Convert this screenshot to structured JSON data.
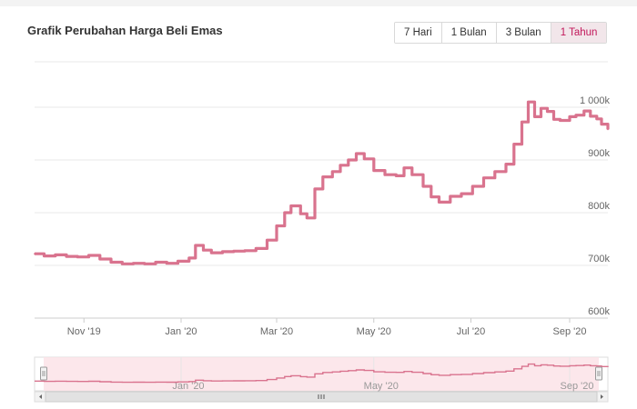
{
  "chart_title": "Grafik Perubahan Harga Beli Emas",
  "range_buttons": [
    {
      "label": "7 Hari",
      "active": false
    },
    {
      "label": "1 Bulan",
      "active": false
    },
    {
      "label": "3 Bulan",
      "active": false
    },
    {
      "label": "1 Tahun",
      "active": true
    }
  ],
  "colors": {
    "line": "#d9738e",
    "navigator_mask": "#fbe3e8",
    "active_button_text": "#c2185b",
    "grid": "#e8e8e8",
    "axis_text": "#666666"
  },
  "chart_data": {
    "type": "line",
    "title": "Grafik Perubahan Harga Beli Emas",
    "xlabel": "",
    "ylabel": "",
    "x_range": [
      "2019-10-01",
      "2020-09-25"
    ],
    "y_range": [
      600,
      1000
    ],
    "x_ticks": [
      {
        "date": "2019-11-01",
        "label": "Nov '19"
      },
      {
        "date": "2020-01-01",
        "label": "Jan '20"
      },
      {
        "date": "2020-03-01",
        "label": "Mar '20"
      },
      {
        "date": "2020-05-01",
        "label": "May '20"
      },
      {
        "date": "2020-07-01",
        "label": "Jul '20"
      },
      {
        "date": "2020-09-01",
        "label": "Sep '20"
      }
    ],
    "y_ticks": [
      {
        "value": 600,
        "label": "600k"
      },
      {
        "value": 700,
        "label": "700k"
      },
      {
        "value": 800,
        "label": "800k"
      },
      {
        "value": 900,
        "label": "900k"
      },
      {
        "value": 1000,
        "label": "1 000k"
      }
    ],
    "series": [
      {
        "points": [
          [
            "2019-10-01",
            722
          ],
          [
            "2019-10-07",
            718
          ],
          [
            "2019-10-14",
            720
          ],
          [
            "2019-10-21",
            717
          ],
          [
            "2019-10-28",
            716
          ],
          [
            "2019-11-04",
            719
          ],
          [
            "2019-11-11",
            712
          ],
          [
            "2019-11-18",
            706
          ],
          [
            "2019-11-25",
            703
          ],
          [
            "2019-12-02",
            704
          ],
          [
            "2019-12-09",
            703
          ],
          [
            "2019-12-16",
            706
          ],
          [
            "2019-12-23",
            704
          ],
          [
            "2019-12-30",
            708
          ],
          [
            "2020-01-06",
            714
          ],
          [
            "2020-01-10",
            738
          ],
          [
            "2020-01-15",
            729
          ],
          [
            "2020-01-20",
            724
          ],
          [
            "2020-01-27",
            726
          ],
          [
            "2020-02-03",
            727
          ],
          [
            "2020-02-10",
            728
          ],
          [
            "2020-02-17",
            732
          ],
          [
            "2020-02-24",
            748
          ],
          [
            "2020-03-01",
            775
          ],
          [
            "2020-03-06",
            800
          ],
          [
            "2020-03-10",
            813
          ],
          [
            "2020-03-16",
            798
          ],
          [
            "2020-03-20",
            790
          ],
          [
            "2020-03-25",
            845
          ],
          [
            "2020-03-30",
            868
          ],
          [
            "2020-04-05",
            878
          ],
          [
            "2020-04-10",
            890
          ],
          [
            "2020-04-15",
            900
          ],
          [
            "2020-04-20",
            912
          ],
          [
            "2020-04-25",
            902
          ],
          [
            "2020-05-01",
            880
          ],
          [
            "2020-05-08",
            872
          ],
          [
            "2020-05-15",
            870
          ],
          [
            "2020-05-20",
            885
          ],
          [
            "2020-05-25",
            872
          ],
          [
            "2020-06-01",
            850
          ],
          [
            "2020-06-06",
            830
          ],
          [
            "2020-06-11",
            820
          ],
          [
            "2020-06-18",
            831
          ],
          [
            "2020-06-25",
            836
          ],
          [
            "2020-07-02",
            850
          ],
          [
            "2020-07-09",
            866
          ],
          [
            "2020-07-16",
            878
          ],
          [
            "2020-07-23",
            892
          ],
          [
            "2020-07-28",
            930
          ],
          [
            "2020-08-02",
            972
          ],
          [
            "2020-08-06",
            1010
          ],
          [
            "2020-08-10",
            982
          ],
          [
            "2020-08-14",
            998
          ],
          [
            "2020-08-18",
            992
          ],
          [
            "2020-08-22",
            977
          ],
          [
            "2020-08-26",
            975
          ],
          [
            "2020-09-01",
            982
          ],
          [
            "2020-09-05",
            985
          ],
          [
            "2020-09-10",
            993
          ],
          [
            "2020-09-14",
            983
          ],
          [
            "2020-09-18",
            978
          ],
          [
            "2020-09-21",
            968
          ],
          [
            "2020-09-25",
            958
          ]
        ]
      }
    ],
    "navigator": {
      "x_range": [
        "2019-10-01",
        "2020-09-25"
      ],
      "x_ticks": [
        {
          "date": "2020-01-01",
          "label": "Jan '20"
        },
        {
          "date": "2020-05-01",
          "label": "May '20"
        },
        {
          "date": "2020-09-01",
          "label": "Sep '20"
        }
      ]
    },
    "grid": true,
    "legend": "none"
  }
}
